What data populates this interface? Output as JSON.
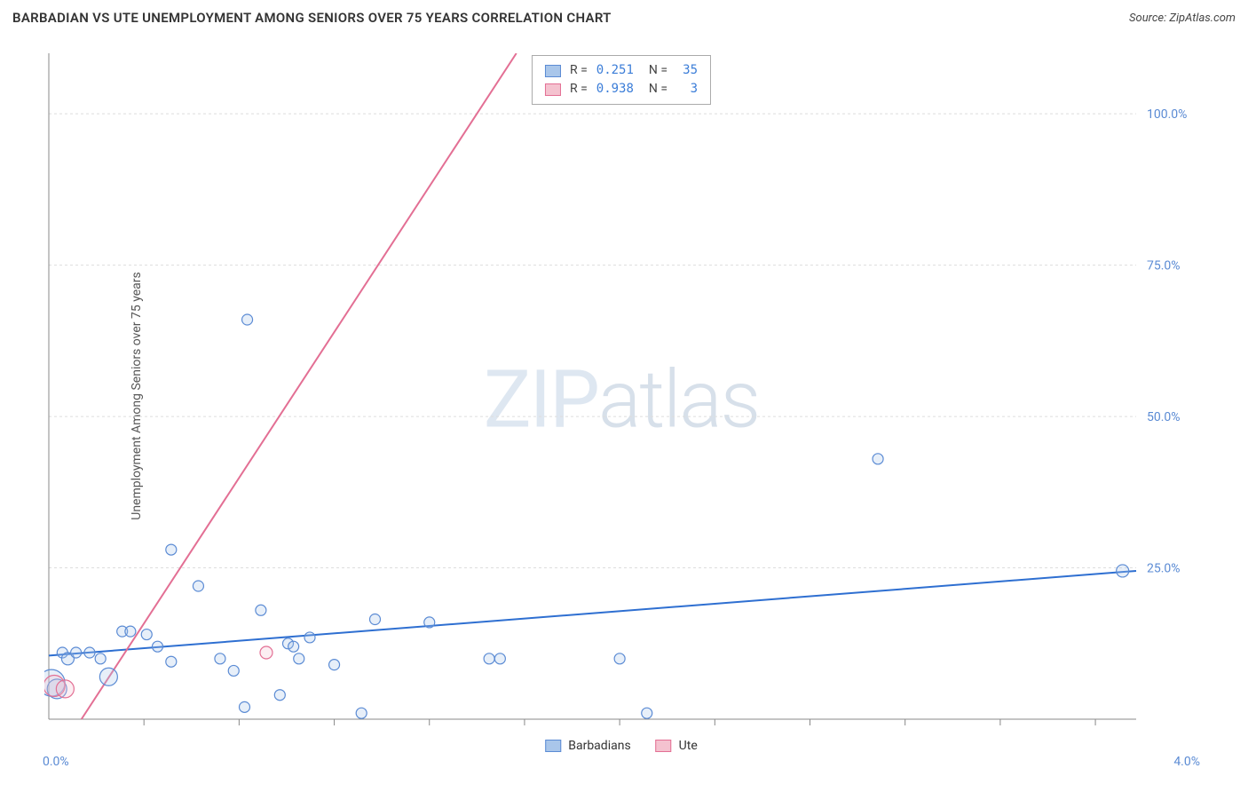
{
  "header": {
    "title": "BARBADIAN VS UTE UNEMPLOYMENT AMONG SENIORS OVER 75 YEARS CORRELATION CHART",
    "source": "Source: ZipAtlas.com"
  },
  "axes": {
    "y_label": "Unemployment Among Seniors over 75 years",
    "y_label_fontsize": 14,
    "x_min": 0.0,
    "x_max": 4.0,
    "y_min": 0.0,
    "y_max": 110.0,
    "y_ticks": [
      25.0,
      50.0,
      75.0,
      100.0
    ],
    "y_tick_labels": [
      "25.0%",
      "50.0%",
      "75.0%",
      "100.0%"
    ],
    "x_min_label": "0.0%",
    "x_max_label": "4.0%",
    "x_minor_ticks": [
      0.35,
      0.7,
      1.05,
      1.4,
      1.75,
      2.1,
      2.45,
      2.8,
      3.15,
      3.5,
      3.85
    ],
    "axis_color": "#888888",
    "tick_label_color": "#5b8bd4",
    "grid_color": "#dddddd"
  },
  "watermark": {
    "zip": "ZIP",
    "atlas": "atlas"
  },
  "series": [
    {
      "name": "Barbadians",
      "color_fill": "#a9c6ea",
      "color_stroke": "#5b8bd4",
      "R": "0.251",
      "N": "35",
      "trend": {
        "x1": 0.0,
        "y1": 10.5,
        "x2": 4.0,
        "y2": 24.5,
        "color": "#2e6fd1",
        "width": 2.5
      },
      "points": [
        {
          "x": 0.01,
          "y": 6.0,
          "r": 15
        },
        {
          "x": 0.03,
          "y": 5.0,
          "r": 11
        },
        {
          "x": 0.05,
          "y": 11.0,
          "r": 6
        },
        {
          "x": 0.07,
          "y": 10.0,
          "r": 7
        },
        {
          "x": 0.1,
          "y": 11.0,
          "r": 6
        },
        {
          "x": 0.15,
          "y": 11.0,
          "r": 6
        },
        {
          "x": 0.19,
          "y": 10.0,
          "r": 6
        },
        {
          "x": 0.22,
          "y": 7.0,
          "r": 10
        },
        {
          "x": 0.27,
          "y": 14.5,
          "r": 6
        },
        {
          "x": 0.3,
          "y": 14.5,
          "r": 6
        },
        {
          "x": 0.36,
          "y": 14.0,
          "r": 6
        },
        {
          "x": 0.4,
          "y": 12.0,
          "r": 6
        },
        {
          "x": 0.45,
          "y": 9.5,
          "r": 6
        },
        {
          "x": 0.45,
          "y": 28.0,
          "r": 6
        },
        {
          "x": 0.55,
          "y": 22.0,
          "r": 6
        },
        {
          "x": 0.63,
          "y": 10.0,
          "r": 6
        },
        {
          "x": 0.68,
          "y": 8.0,
          "r": 6
        },
        {
          "x": 0.72,
          "y": 2.0,
          "r": 6
        },
        {
          "x": 0.73,
          "y": 66.0,
          "r": 6
        },
        {
          "x": 0.78,
          "y": 18.0,
          "r": 6
        },
        {
          "x": 0.85,
          "y": 4.0,
          "r": 6
        },
        {
          "x": 0.88,
          "y": 12.5,
          "r": 6
        },
        {
          "x": 0.9,
          "y": 12.0,
          "r": 6
        },
        {
          "x": 0.92,
          "y": 10.0,
          "r": 6
        },
        {
          "x": 0.96,
          "y": 13.5,
          "r": 6
        },
        {
          "x": 1.05,
          "y": 9.0,
          "r": 6
        },
        {
          "x": 1.15,
          "y": 1.0,
          "r": 6
        },
        {
          "x": 1.2,
          "y": 16.5,
          "r": 6
        },
        {
          "x": 1.4,
          "y": 16.0,
          "r": 6
        },
        {
          "x": 1.62,
          "y": 10.0,
          "r": 6
        },
        {
          "x": 1.66,
          "y": 10.0,
          "r": 6
        },
        {
          "x": 2.1,
          "y": 10.0,
          "r": 6
        },
        {
          "x": 2.2,
          "y": 1.0,
          "r": 6
        },
        {
          "x": 3.05,
          "y": 43.0,
          "r": 6
        },
        {
          "x": 3.95,
          "y": 24.5,
          "r": 7
        }
      ]
    },
    {
      "name": "Ute",
      "color_fill": "#f4c2cf",
      "color_stroke": "#e36f94",
      "R": "0.938",
      "N": "3",
      "trend": {
        "x1": 0.12,
        "y1": 0.0,
        "x2": 1.72,
        "y2": 110.0,
        "color": "#e36f94",
        "width": 2
      },
      "points": [
        {
          "x": 0.02,
          "y": 5.5,
          "r": 12
        },
        {
          "x": 0.06,
          "y": 5.0,
          "r": 10
        },
        {
          "x": 0.8,
          "y": 11.0,
          "r": 7
        }
      ]
    }
  ],
  "legend_bottom": {
    "items": [
      {
        "label": "Barbadians",
        "fill": "#a9c6ea",
        "stroke": "#5b8bd4"
      },
      {
        "label": "Ute",
        "fill": "#f4c2cf",
        "stroke": "#e36f94"
      }
    ]
  },
  "background_color": "#ffffff"
}
